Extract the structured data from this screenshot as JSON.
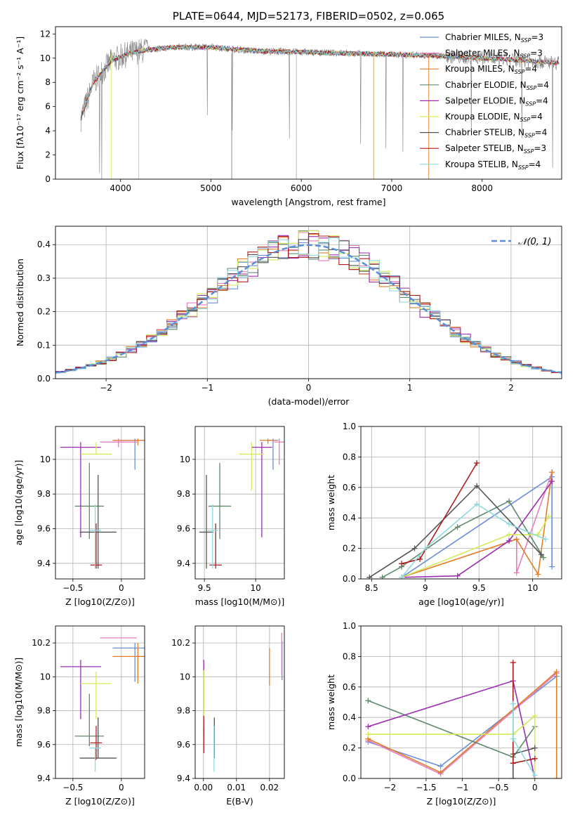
{
  "colors": {
    "Chabrier MILES": "#6a8fd8",
    "Salpeter MILES": "#e57dbf",
    "Kroupa MILES": "#e27e2a",
    "Chabrier ELODIE": "#5f8a6a",
    "Salpeter ELODIE": "#9b2fb0",
    "Kroupa ELODIE": "#d4ea5a",
    "Chabrier STELIB": "#555555",
    "Salpeter STELIB": "#b01b1b",
    "Kroupa STELIB": "#8fd9de"
  },
  "chart_data": [
    {
      "id": "spectrum",
      "type": "line",
      "title": "PLATE=0644, MJD=52173, FIBERID=0502, z=0.065",
      "xlabel": "wavelength [Angstrom, rest frame]",
      "ylabel": "Flux [fλ10⁻¹⁷ erg cm⁻² s⁻¹ A⁻¹]",
      "xlim": [
        3280,
        8880
      ],
      "ylim": [
        0,
        12.6
      ],
      "xticks": [
        4000,
        5000,
        6000,
        7000,
        8000
      ],
      "yticks": [
        0,
        2,
        4,
        6,
        8,
        10,
        12
      ],
      "grid": false,
      "legend_position": "upper-right",
      "legend": [
        "Chabrier MILES, N_SSP=3",
        "Salpeter MILES, N_SSP=3",
        "Kroupa MILES, N_SSP=4",
        "Chabrier ELODIE, N_SSP=4",
        "Salpeter ELODIE, N_SSP=4",
        "Kroupa ELODIE, N_SSP=4",
        "Chabrier STELIB, N_SSP=4",
        "Salpeter STELIB, N_SSP=3",
        "Kroupa STELIB, N_SSP=4"
      ],
      "data_envelope": {
        "x": [
          3560,
          3700,
          3900,
          4100,
          4300,
          4600,
          5000,
          5500,
          6000,
          6500,
          7000,
          7500,
          8000,
          8500,
          8850
        ],
        "y": [
          5.0,
          8.0,
          9.8,
          10.4,
          10.7,
          10.9,
          10.9,
          10.6,
          10.5,
          10.4,
          10.3,
          10.2,
          10.0,
          9.8,
          9.6
        ]
      }
    },
    {
      "id": "residuals",
      "type": "line",
      "xlabel": "(data-model)/error",
      "ylabel": "Normed distribution",
      "xlim": [
        -2.5,
        2.5
      ],
      "ylim": [
        0,
        0.455
      ],
      "xticks": [
        -2,
        -1,
        0,
        1,
        2
      ],
      "yticks": [
        0.0,
        0.1,
        0.2,
        0.3,
        0.4
      ],
      "grid": true,
      "legend_position": "upper-right",
      "legend": [
        "𝒩(0, 1)"
      ],
      "gaussian": {
        "mean": 0,
        "sigma": 1
      }
    },
    {
      "id": "age_vs_Z",
      "type": "scatter",
      "xlabel": "Z [log10(Z/Z⊙)]",
      "ylabel": "age  [log10(age/yr)]",
      "xlim": [
        -0.68,
        0.24
      ],
      "ylim": [
        9.31,
        10.19
      ],
      "xticks": [
        -0.5,
        0.0
      ],
      "yticks": [
        9.4,
        9.6,
        9.8,
        10.0
      ],
      "grid": true,
      "points": [
        {
          "model": "Chabrier MILES",
          "x": 0.14,
          "y": 10.11,
          "ex": 0.23,
          "ey_up": 0.01,
          "ey_dn": 0.17
        },
        {
          "model": "Salpeter MILES",
          "x": -0.03,
          "y": 10.1,
          "ex": 0.19,
          "ey_up": 0.02,
          "ey_dn": 0.03
        },
        {
          "model": "Kroupa MILES",
          "x": 0.17,
          "y": 10.11,
          "ex": 0.26,
          "ey_up": 0.01,
          "ey_dn": 0.03
        },
        {
          "model": "Chabrier ELODIE",
          "x": -0.33,
          "y": 9.73,
          "ex": 0.15,
          "ey_up": 0.25,
          "ey_dn": 0.19
        },
        {
          "model": "Salpeter ELODIE",
          "x": -0.42,
          "y": 10.07,
          "ex": 0.21,
          "ey_up": 0.03,
          "ey_dn": 0.52
        },
        {
          "model": "Kroupa ELODIE",
          "x": -0.26,
          "y": 10.03,
          "ex": 0.16,
          "ey_up": 0.07,
          "ey_dn": 0.0
        },
        {
          "model": "Chabrier STELIB",
          "x": -0.24,
          "y": 9.58,
          "ex": 0.19,
          "ey_up": 0.33,
          "ey_dn": 0.21
        },
        {
          "model": "Salpeter STELIB",
          "x": -0.26,
          "y": 9.39,
          "ex": 0.06,
          "ey_up": 0.24,
          "ey_dn": 0.02
        },
        {
          "model": "Kroupa STELIB",
          "x": -0.27,
          "y": 9.59,
          "ex": 0.06,
          "ey_up": 0.15,
          "ey_dn": 0.22
        }
      ]
    },
    {
      "id": "age_vs_mass",
      "type": "scatter",
      "xlabel": "mass [log10(M/M⊙)]",
      "ylabel": "",
      "xlim": [
        9.41,
        10.28
      ],
      "ylim": [
        9.31,
        10.19
      ],
      "xticks": [
        9.5,
        10.0
      ],
      "yticks": [
        9.4,
        9.6,
        9.8,
        10.0
      ],
      "grid": true,
      "points": [
        {
          "model": "Chabrier MILES",
          "x": 10.17,
          "y": 10.11,
          "ex": 0.05,
          "ey_up": 0.01,
          "ey_dn": 0.17
        },
        {
          "model": "Salpeter MILES",
          "x": 10.23,
          "y": 10.1,
          "ex": 0.05,
          "ey_up": 0.02,
          "ey_dn": 0.13
        },
        {
          "model": "Kroupa MILES",
          "x": 10.12,
          "y": 10.11,
          "ex": 0.08,
          "ey_up": 0.01,
          "ey_dn": 0.02
        },
        {
          "model": "Chabrier ELODIE",
          "x": 9.65,
          "y": 9.73,
          "ex": 0.11,
          "ey_up": 0.25,
          "ey_dn": 0.19
        },
        {
          "model": "Salpeter ELODIE",
          "x": 10.06,
          "y": 10.07,
          "ex": 0.1,
          "ey_up": 0.03,
          "ey_dn": 0.52
        },
        {
          "model": "Kroupa ELODIE",
          "x": 9.96,
          "y": 10.03,
          "ex": 0.12,
          "ey_up": 0.07,
          "ey_dn": 0.21
        },
        {
          "model": "Chabrier STELIB",
          "x": 9.52,
          "y": 9.58,
          "ex": 0.07,
          "ey_up": 0.33,
          "ey_dn": 0.21
        },
        {
          "model": "Salpeter STELIB",
          "x": 9.61,
          "y": 9.39,
          "ex": 0.06,
          "ey_up": 0.24,
          "ey_dn": 0.02
        },
        {
          "model": "Kroupa STELIB",
          "x": 9.58,
          "y": 9.59,
          "ex": 0.05,
          "ey_up": 0.15,
          "ey_dn": 0.22
        }
      ]
    },
    {
      "id": "massweight_vs_age",
      "type": "line",
      "xlabel": "age  [log10(age/yr)]",
      "ylabel": "mass weight",
      "xlim": [
        8.4,
        10.27
      ],
      "ylim": [
        0,
        1.0
      ],
      "xticks": [
        8.5,
        9.0,
        9.5,
        10.0
      ],
      "yticks": [
        0.0,
        0.2,
        0.4,
        0.6,
        0.8,
        1.0
      ],
      "grid": true,
      "series": [
        {
          "model": "Chabrier MILES",
          "x": [
            8.78,
            10.18,
            10.18
          ],
          "y": [
            0.01,
            0.67,
            0.08
          ]
        },
        {
          "model": "Salpeter MILES",
          "x": [
            9.85,
            9.85,
            10.18
          ],
          "y": [
            0.26,
            0.04,
            0.7
          ]
        },
        {
          "model": "Kroupa MILES",
          "x": [
            8.78,
            9.85,
            10.05,
            10.18
          ],
          "y": [
            0.01,
            0.26,
            0.03,
            0.7
          ]
        },
        {
          "model": "Chabrier ELODIE",
          "x": [
            8.6,
            8.78,
            9.3,
            9.78,
            10.1
          ],
          "y": [
            0.01,
            0.08,
            0.34,
            0.51,
            0.14
          ]
        },
        {
          "model": "Salpeter ELODIE",
          "x": [
            8.78,
            9.3,
            9.78,
            10.18
          ],
          "y": [
            0.01,
            0.02,
            0.25,
            0.64
          ]
        },
        {
          "model": "Kroupa ELODIE",
          "x": [
            8.78,
            9.78,
            10.05,
            10.15
          ],
          "y": [
            0.01,
            0.29,
            0.29,
            0.41
          ]
        },
        {
          "model": "Chabrier STELIB",
          "x": [
            8.48,
            8.9,
            9.48,
            10.08
          ],
          "y": [
            0.01,
            0.2,
            0.61,
            0.16
          ]
        },
        {
          "model": "Salpeter STELIB",
          "x": [
            8.78,
            8.95,
            9.48
          ],
          "y": [
            0.1,
            0.13,
            0.76
          ]
        },
        {
          "model": "Kroupa STELIB",
          "x": [
            8.78,
            9.0,
            9.48,
            9.78,
            10.12
          ],
          "y": [
            0.01,
            0.2,
            0.49,
            0.36,
            0.26
          ]
        }
      ]
    },
    {
      "id": "mass_vs_Z",
      "type": "scatter",
      "xlabel": "Z [log10(Z/Z⊙)]",
      "ylabel": "mass [log10(M/M⊙)]",
      "xlim": [
        -0.68,
        0.24
      ],
      "ylim": [
        9.4,
        10.3
      ],
      "xticks": [
        -0.5,
        0.0
      ],
      "yticks": [
        9.4,
        9.6,
        9.8,
        10.0,
        10.2
      ],
      "grid": true,
      "points": [
        {
          "model": "Chabrier MILES",
          "x": 0.14,
          "y": 10.17,
          "ex": 0.23,
          "ey_up": 0.03,
          "ey_dn": 0.2
        },
        {
          "model": "Salpeter MILES",
          "x": -0.03,
          "y": 10.23,
          "ex": 0.19,
          "ey_up": 0.0,
          "ey_dn": 0.0
        },
        {
          "model": "Kroupa MILES",
          "x": 0.17,
          "y": 10.12,
          "ex": 0.26,
          "ey_up": 0.08,
          "ey_dn": 0.16
        },
        {
          "model": "Chabrier ELODIE",
          "x": -0.33,
          "y": 9.65,
          "ex": 0.15,
          "ey_up": 0.25,
          "ey_dn": 0.06
        },
        {
          "model": "Salpeter ELODIE",
          "x": -0.42,
          "y": 10.06,
          "ex": 0.21,
          "ey_up": 0.04,
          "ey_dn": 0.31
        },
        {
          "model": "Kroupa ELODIE",
          "x": -0.26,
          "y": 9.96,
          "ex": 0.16,
          "ey_up": 0.07,
          "ey_dn": 0.21
        },
        {
          "model": "Chabrier STELIB",
          "x": -0.24,
          "y": 9.52,
          "ex": 0.19,
          "ey_up": 0.24,
          "ey_dn": 0.0
        },
        {
          "model": "Salpeter STELIB",
          "x": -0.26,
          "y": 9.61,
          "ex": 0.06,
          "ey_up": 0.1,
          "ey_dn": 0.1
        },
        {
          "model": "Kroupa STELIB",
          "x": -0.27,
          "y": 9.58,
          "ex": 0.06,
          "ey_up": 0.0,
          "ey_dn": 0.14
        }
      ]
    },
    {
      "id": "mass_vs_ebv",
      "type": "scatter",
      "xlabel": "E(B-V)",
      "ylabel": "",
      "xlim": [
        -0.0025,
        0.0245
      ],
      "ylim": [
        9.4,
        10.3
      ],
      "xticks": [
        0.0,
        0.01,
        0.02
      ],
      "xticklabels": [
        "0.00",
        "0.01",
        "0.02"
      ],
      "yticks": [
        9.4,
        9.6,
        9.8,
        10.0,
        10.2
      ],
      "grid": true,
      "points": [
        {
          "model": "Chabrier MILES",
          "x": 0.0238,
          "y": 10.17,
          "ex": 0,
          "ey_up": 0.04,
          "ey_dn": 0.19
        },
        {
          "model": "Salpeter MILES",
          "x": 0.0237,
          "y": 10.23,
          "ex": 0,
          "ey_up": 0.03,
          "ey_dn": 0.22
        },
        {
          "model": "Kroupa MILES",
          "x": 0.02,
          "y": 10.12,
          "ex": 0,
          "ey_up": 0.05,
          "ey_dn": 0.17
        },
        {
          "model": "Chabrier ELODIE",
          "x": 0.0001,
          "y": 9.65,
          "ex": 0,
          "ey_up": 0.05,
          "ey_dn": 0.0
        },
        {
          "model": "Salpeter ELODIE",
          "x": 0.0001,
          "y": 10.06,
          "ex": 0,
          "ey_up": 0.04,
          "ey_dn": 0.28
        },
        {
          "model": "Kroupa ELODIE",
          "x": 0.0001,
          "y": 9.96,
          "ex": 0,
          "ey_up": 0.08,
          "ey_dn": 0.19
        },
        {
          "model": "Chabrier STELIB",
          "x": 0.0033,
          "y": 9.52,
          "ex": 0,
          "ey_up": 0.24,
          "ey_dn": 0.0
        },
        {
          "model": "Salpeter STELIB",
          "x": 0.0001,
          "y": 9.61,
          "ex": 0,
          "ey_up": 0.16,
          "ey_dn": 0.06
        },
        {
          "model": "Kroupa STELIB",
          "x": 0.0032,
          "y": 9.58,
          "ex": 0,
          "ey_up": 0.13,
          "ey_dn": 0.14
        }
      ]
    },
    {
      "id": "massweight_vs_Z",
      "type": "line",
      "xlabel": "Z [log10(Z/Z⊙)]",
      "ylabel": "mass weight",
      "xlim": [
        -2.4,
        0.37
      ],
      "ylim": [
        0,
        1.0
      ],
      "xticks": [
        -2.0,
        -1.5,
        -1.0,
        -0.5,
        0.0
      ],
      "yticks": [
        0.0,
        0.2,
        0.4,
        0.6,
        0.8,
        1.0
      ],
      "grid": true,
      "series": [
        {
          "model": "Chabrier MILES",
          "x": [
            -2.3,
            -1.3,
            0.3
          ],
          "y": [
            0.24,
            0.08,
            0.67
          ]
        },
        {
          "model": "Salpeter MILES",
          "x": [
            -2.3,
            -1.3,
            0.3
          ],
          "y": [
            0.25,
            0.03,
            0.69
          ]
        },
        {
          "model": "Kroupa MILES",
          "x": [
            -2.3,
            -1.3,
            0.3,
            0.3
          ],
          "y": [
            0.26,
            0.04,
            0.7,
            0.0
          ]
        },
        {
          "model": "Chabrier ELODIE",
          "x": [
            -2.3,
            -0.3,
            0.0
          ],
          "y": [
            0.51,
            0.14,
            0.34
          ]
        },
        {
          "model": "Salpeter ELODIE",
          "x": [
            -2.3,
            -0.3,
            0.0
          ],
          "y": [
            0.34,
            0.64,
            0.0
          ]
        },
        {
          "model": "Kroupa ELODIE",
          "x": [
            -2.3,
            -0.3,
            0.0,
            0.0
          ],
          "y": [
            0.29,
            0.29,
            0.41,
            0.0
          ]
        },
        {
          "model": "Chabrier STELIB",
          "x": [
            -0.3,
            -0.3,
            0.0
          ],
          "y": [
            0.0,
            0.16,
            0.2
          ]
        },
        {
          "model": "Salpeter STELIB",
          "x": [
            -0.3,
            -0.3,
            0.0
          ],
          "y": [
            0.76,
            0.1,
            0.13
          ]
        },
        {
          "model": "Kroupa STELIB",
          "x": [
            -0.3,
            -0.3,
            0.0
          ],
          "y": [
            0.49,
            0.26,
            0.02
          ]
        }
      ]
    }
  ]
}
